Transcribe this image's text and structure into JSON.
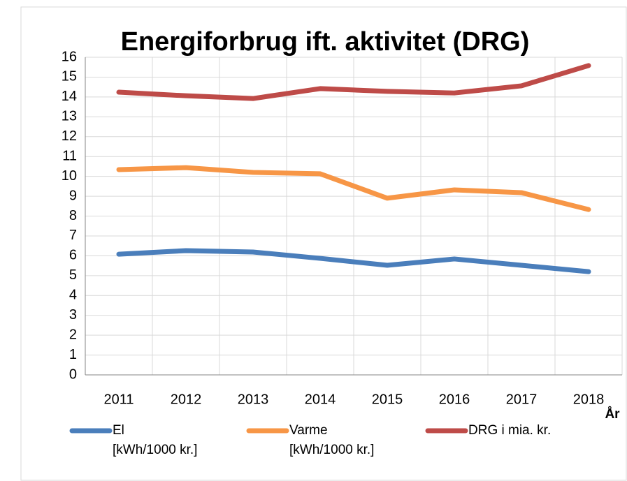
{
  "chart_data": {
    "type": "line",
    "title": "Energiforbrug ift. aktivitet (DRG)",
    "x_label": "År",
    "categories": [
      "2011",
      "2012",
      "2013",
      "2014",
      "2015",
      "2016",
      "2017",
      "2018"
    ],
    "series": [
      {
        "name": "El\n[kWh/1000 kr.]",
        "color": "#4a7ebb",
        "values": [
          6.08,
          6.26,
          6.19,
          5.87,
          5.52,
          5.84,
          5.52,
          5.2
        ]
      },
      {
        "name": "Varme\n[kWh/1000 kr.]",
        "color": "#f79646",
        "values": [
          10.34,
          10.44,
          10.2,
          10.13,
          8.9,
          9.32,
          9.18,
          8.33
        ]
      },
      {
        "name": "DRG i mia. kr.",
        "color": "#be4b48",
        "values": [
          14.24,
          14.06,
          13.92,
          14.42,
          14.28,
          14.2,
          14.56,
          15.58
        ]
      }
    ],
    "ylim": [
      0,
      16
    ],
    "yticks": [
      0,
      1,
      2,
      3,
      4,
      5,
      6,
      7,
      8,
      9,
      10,
      11,
      12,
      13,
      14,
      15,
      16
    ],
    "grid": true,
    "legend": "bottom"
  }
}
